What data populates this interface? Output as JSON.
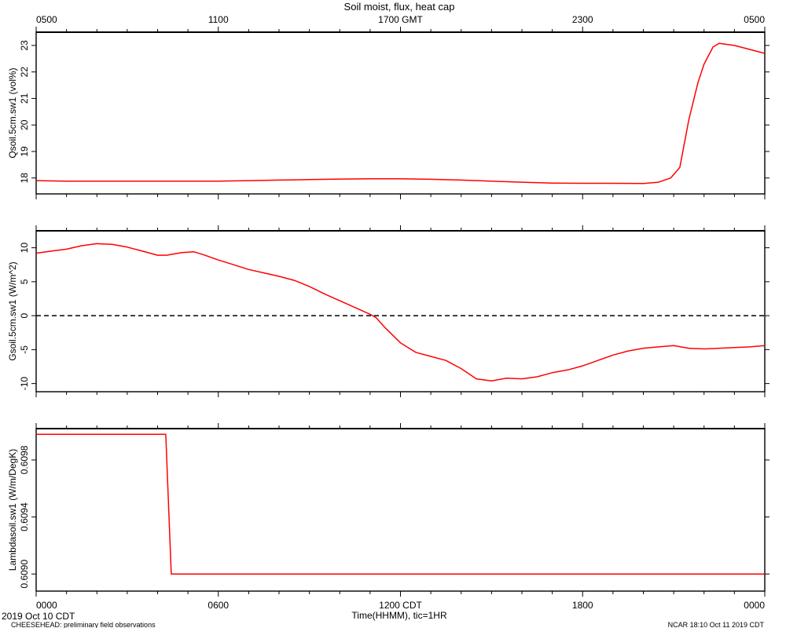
{
  "title": "Soil moist, flux, heat cap",
  "top_axis": {
    "ticks": [
      "0500",
      "1100",
      "1700 GMT",
      "2300",
      "0500"
    ]
  },
  "bottom_axis": {
    "ticks": [
      "0000",
      "0600",
      "1200 CDT",
      "1800",
      "0000"
    ],
    "label": "Time(HHMM), tic=1HR"
  },
  "footer": {
    "date": "2019 Oct 10 CDT",
    "note": "CHEESEHEAD: preliminary field observations",
    "stamp": "NCAR 18:10 Oct 11 2019 CDT"
  },
  "colors": {
    "series": "#ff0000",
    "axes": "#000000",
    "zero_line": "#000000"
  },
  "chart_data": [
    {
      "type": "line",
      "ylabel": "Qsoil.5cm.sw1 (vol%)",
      "xlim": [
        0,
        24
      ],
      "ylim": [
        17.4,
        23.5
      ],
      "yticks": [
        18,
        19,
        20,
        21,
        22,
        23
      ],
      "x": [
        0,
        1,
        2,
        3,
        4,
        5,
        6,
        7,
        8,
        9,
        10,
        11,
        12,
        13,
        14,
        15,
        16,
        17,
        18,
        19,
        20,
        20.5,
        20.9,
        21.2,
        21.5,
        21.8,
        22,
        22.3,
        22.5,
        23,
        24
      ],
      "y": [
        17.9,
        17.88,
        17.88,
        17.88,
        17.88,
        17.88,
        17.88,
        17.9,
        17.92,
        17.94,
        17.96,
        17.97,
        17.97,
        17.95,
        17.92,
        17.88,
        17.84,
        17.81,
        17.8,
        17.8,
        17.79,
        17.84,
        18.0,
        18.4,
        20.2,
        21.6,
        22.3,
        22.95,
        23.08,
        23.0,
        22.7
      ]
    },
    {
      "type": "line",
      "ylabel": "Gsoil.5cm.sw1 (W/m^2)",
      "xlim": [
        0,
        24
      ],
      "ylim": [
        -11.2,
        12.5
      ],
      "yticks": [
        -10,
        -5,
        0,
        5,
        10
      ],
      "zero_line": true,
      "x": [
        0,
        0.5,
        1,
        1.5,
        2,
        2.5,
        3,
        3.5,
        4,
        4.3,
        4.8,
        5.2,
        5.5,
        6,
        6.5,
        7,
        7.5,
        8,
        8.5,
        9,
        9.5,
        10,
        10.5,
        11,
        11.2,
        11.5,
        12,
        12.5,
        13,
        13.5,
        14,
        14.5,
        15,
        15.5,
        16,
        16.5,
        17,
        17.5,
        18,
        18.5,
        19,
        19.5,
        20,
        20.5,
        21,
        21.5,
        22,
        22.5,
        23,
        23.5,
        24
      ],
      "y": [
        9.2,
        9.5,
        9.8,
        10.3,
        10.6,
        10.5,
        10.1,
        9.5,
        8.9,
        8.9,
        9.3,
        9.4,
        9.0,
        8.2,
        7.5,
        6.8,
        6.3,
        5.8,
        5.2,
        4.3,
        3.2,
        2.2,
        1.2,
        0.2,
        -0.3,
        -1.8,
        -4.0,
        -5.4,
        -6.0,
        -6.6,
        -7.8,
        -9.3,
        -9.6,
        -9.2,
        -9.3,
        -9.0,
        -8.4,
        -8.0,
        -7.4,
        -6.6,
        -5.8,
        -5.2,
        -4.8,
        -4.6,
        -4.4,
        -4.8,
        -4.9,
        -4.8,
        -4.7,
        -4.6,
        -4.4
      ]
    },
    {
      "type": "line",
      "ylabel": "Lambdasoil.sw1 (W/m/DegK)",
      "xlim": [
        0,
        24
      ],
      "ylim": [
        0.60888,
        0.61002
      ],
      "yticks": [
        "0.6090",
        "0.6094",
        "0.6098"
      ],
      "ytick_values": [
        0.609,
        0.6094,
        0.6098
      ],
      "x": [
        0,
        4.27,
        4.45,
        24
      ],
      "y": [
        0.60998,
        0.60998,
        0.609,
        0.609
      ]
    }
  ]
}
